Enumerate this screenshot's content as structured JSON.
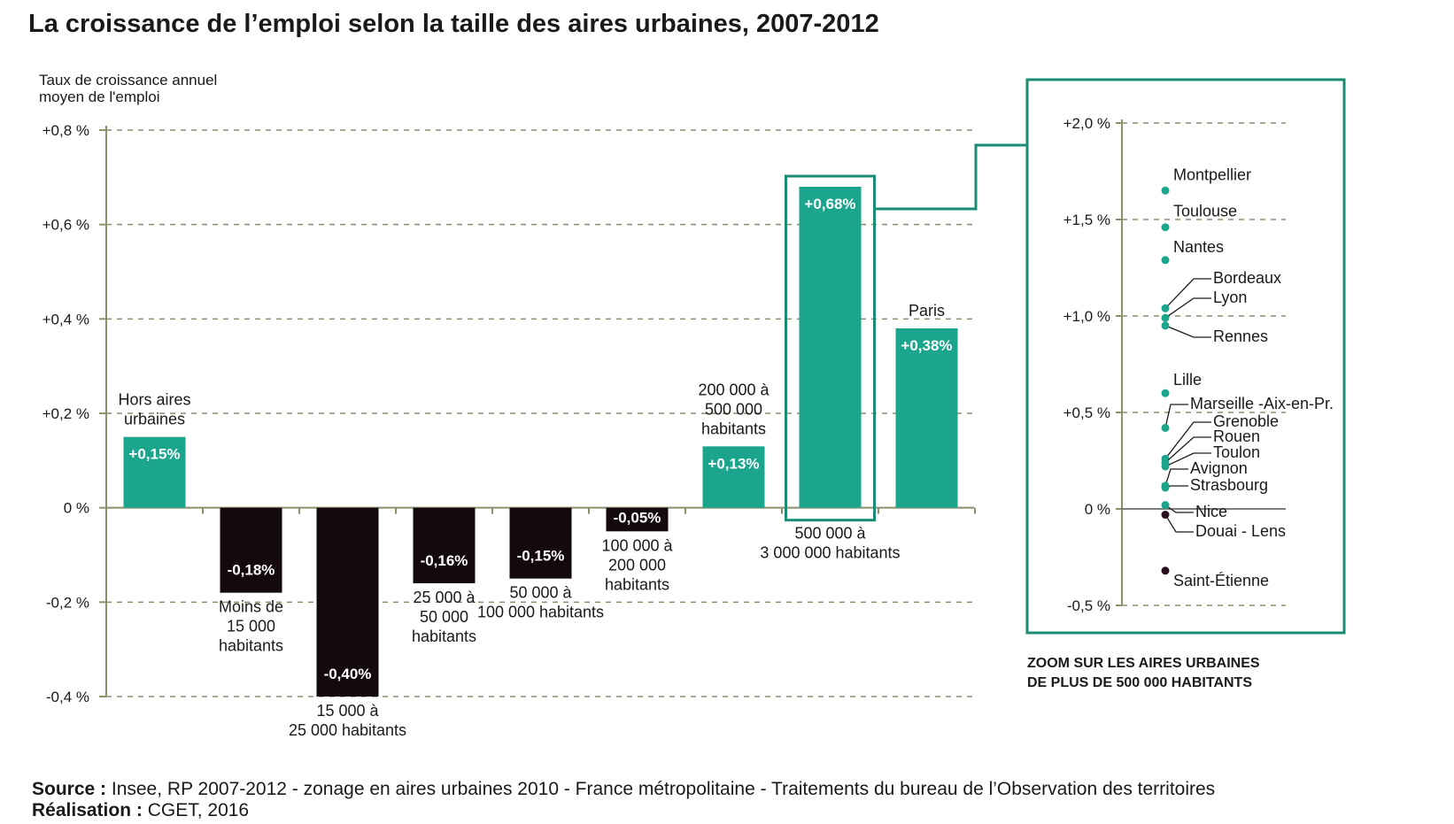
{
  "title": "La croissance de l’emploi selon la taille des aires urbaines, 2007-2012",
  "source_label": "Source :",
  "source_text": " Insee, RP 2007-2012 - zonage en aires urbaines 2010 - France métropolitaine - Traitements du bureau de l’Observation des territoires",
  "realisation_label": "Réalisation :",
  "realisation_text": " CGET, 2016",
  "colors": {
    "positive": "#1aa58c",
    "negative": "#14090e",
    "grid": "#8b8f6a",
    "zoom_border": "#1b8c73",
    "zoom_negative_dot": "#2a0f20"
  },
  "chart_data": [
    {
      "type": "bar",
      "ylabel": [
        "Taux de croissance annuel",
        "moyen de l'emploi"
      ],
      "ylim": [
        -0.4,
        0.8
      ],
      "yticks": [
        0.8,
        0.6,
        0.4,
        0.2,
        0,
        -0.2,
        -0.4
      ],
      "ytick_labels": [
        "+0,8 %",
        "+0,6 %",
        "+0,4 %",
        "+0,2 %",
        "0 %",
        "-0,2 %",
        "-0,4 %"
      ],
      "grid": true,
      "categories": [
        [
          "Hors aires",
          "urbaines"
        ],
        [
          "Moins de",
          "15 000",
          "habitants"
        ],
        [
          "15 000 à",
          "25 000 habitants"
        ],
        [
          "25 000 à",
          "50 000",
          "habitants"
        ],
        [
          "50 000 à",
          "100 000 habitants"
        ],
        [
          "100 000 à",
          "200 000",
          "habitants"
        ],
        [
          "200 000 à",
          "500 000",
          "habitants"
        ],
        [
          "500 000 à",
          "3 000 000 habitants"
        ],
        [
          "Paris"
        ]
      ],
      "values": [
        0.15,
        -0.18,
        -0.4,
        -0.16,
        -0.15,
        -0.05,
        0.13,
        0.68,
        0.38
      ],
      "value_labels": [
        "+0,15%",
        "-0,18%",
        "-0,40%",
        "-0,16%",
        "-0,15%",
        "-0,05%",
        "+0,13%",
        "+0,68%",
        "+0,38%"
      ],
      "highlighted_category": "500 000 à 3 000 000 habitants"
    },
    {
      "type": "scatter",
      "caption": [
        "ZOOM SUR LES AIRES URBAINES",
        "DE PLUS DE 500 000 HABITANTS"
      ],
      "ylim": [
        -0.5,
        2.0
      ],
      "yticks": [
        2.0,
        1.5,
        1.0,
        0.5,
        0,
        -0.5
      ],
      "ytick_labels": [
        "+2,0 %",
        "+1,5 %",
        "+1,0 %",
        "+0,5 %",
        "0 %",
        "-0,5 %"
      ],
      "points": [
        {
          "name": "Montpellier",
          "y": 1.65
        },
        {
          "name": "Toulouse",
          "y": 1.46
        },
        {
          "name": "Nantes",
          "y": 1.29
        },
        {
          "name": "Bordeaux",
          "y": 1.04
        },
        {
          "name": "Lyon",
          "y": 0.99
        },
        {
          "name": "Rennes",
          "y": 0.95
        },
        {
          "name": "Lille",
          "y": 0.6
        },
        {
          "name": "Marseille -Aix-en-Pr.",
          "y": 0.42
        },
        {
          "name": "Grenoble",
          "y": 0.26
        },
        {
          "name": "Rouen",
          "y": 0.24
        },
        {
          "name": "Toulon",
          "y": 0.22
        },
        {
          "name": "Avignon",
          "y": 0.12
        },
        {
          "name": "Strasbourg",
          "y": 0.11
        },
        {
          "name": "Nice",
          "y": 0.02
        },
        {
          "name": "Douai - Lens",
          "y": -0.03
        },
        {
          "name": "Saint-Étienne",
          "y": -0.32
        }
      ]
    }
  ]
}
